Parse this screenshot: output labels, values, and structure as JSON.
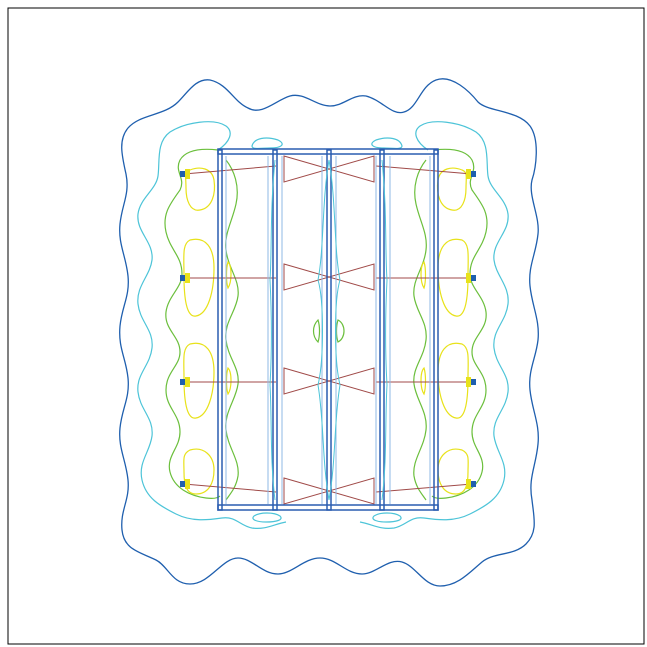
{
  "colors": {
    "background": "#ffffff",
    "frame": "#000000",
    "contour_outer": "#1f5fae",
    "contour_cyan": "#4dc4d8",
    "contour_green": "#6bbf3c",
    "contour_yellow": "#e8e21a",
    "structure_blue": "#2a5db0",
    "structure_light": "#8fb8e6",
    "cross_bracing": "#a04a48"
  },
  "icons": {
    "node": "square-node-marker"
  }
}
